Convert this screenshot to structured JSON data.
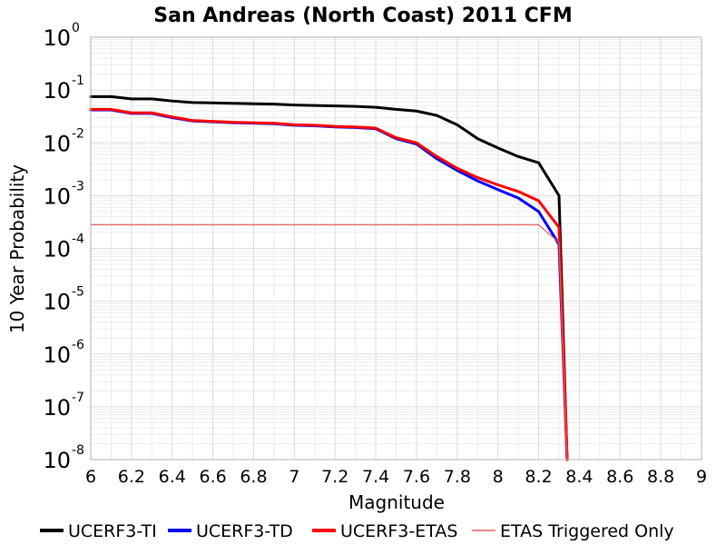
{
  "chart_data": {
    "type": "line",
    "title": "San Andreas (North Coast) 2011 CFM",
    "xlabel": "Magnitude",
    "ylabel": "10 Year Probability",
    "xlim": [
      6,
      9
    ],
    "ylim": [
      1e-08,
      1
    ],
    "yscale": "log",
    "grid": true,
    "legend_position": "bottom",
    "x_ticks": [
      "6",
      "6.2",
      "6.4",
      "6.6",
      "6.8",
      "7",
      "7.2",
      "7.4",
      "7.6",
      "7.8",
      "8",
      "8.2",
      "8.4",
      "8.6",
      "8.8",
      "9"
    ],
    "y_ticks": [
      {
        "base": "10",
        "exp": "0"
      },
      {
        "base": "10",
        "exp": "-1"
      },
      {
        "base": "10",
        "exp": "-2"
      },
      {
        "base": "10",
        "exp": "-3"
      },
      {
        "base": "10",
        "exp": "-4"
      },
      {
        "base": "10",
        "exp": "-5"
      },
      {
        "base": "10",
        "exp": "-6"
      },
      {
        "base": "10",
        "exp": "-7"
      },
      {
        "base": "10",
        "exp": "-8"
      }
    ],
    "series": [
      {
        "name": "UCERF3-TI",
        "color": "#000000",
        "points": [
          [
            6.0,
            0.075
          ],
          [
            6.1,
            0.075
          ],
          [
            6.2,
            0.068
          ],
          [
            6.3,
            0.068
          ],
          [
            6.4,
            0.062
          ],
          [
            6.5,
            0.058
          ],
          [
            6.6,
            0.057
          ],
          [
            6.7,
            0.056
          ],
          [
            6.8,
            0.055
          ],
          [
            6.9,
            0.054
          ],
          [
            7.0,
            0.052
          ],
          [
            7.1,
            0.051
          ],
          [
            7.2,
            0.05
          ],
          [
            7.3,
            0.049
          ],
          [
            7.4,
            0.047
          ],
          [
            7.5,
            0.043
          ],
          [
            7.6,
            0.04
          ],
          [
            7.7,
            0.033
          ],
          [
            7.8,
            0.022
          ],
          [
            7.9,
            0.012
          ],
          [
            8.0,
            0.008
          ],
          [
            8.1,
            0.0055
          ],
          [
            8.2,
            0.0042
          ],
          [
            8.3,
            0.001
          ],
          [
            8.34,
            1e-08
          ]
        ]
      },
      {
        "name": "UCERF3-TD",
        "color": "#0000ff",
        "points": [
          [
            6.0,
            0.042
          ],
          [
            6.1,
            0.042
          ],
          [
            6.2,
            0.036
          ],
          [
            6.3,
            0.036
          ],
          [
            6.4,
            0.03
          ],
          [
            6.5,
            0.026
          ],
          [
            6.6,
            0.025
          ],
          [
            6.7,
            0.024
          ],
          [
            6.8,
            0.0235
          ],
          [
            6.9,
            0.023
          ],
          [
            7.0,
            0.0215
          ],
          [
            7.1,
            0.021
          ],
          [
            7.2,
            0.02
          ],
          [
            7.3,
            0.0195
          ],
          [
            7.4,
            0.0185
          ],
          [
            7.5,
            0.012
          ],
          [
            7.6,
            0.0095
          ],
          [
            7.7,
            0.005
          ],
          [
            7.8,
            0.003
          ],
          [
            7.9,
            0.0019
          ],
          [
            8.0,
            0.0013
          ],
          [
            8.1,
            0.0009
          ],
          [
            8.2,
            0.0005
          ],
          [
            8.3,
            0.00012
          ],
          [
            8.34,
            1e-08
          ]
        ]
      },
      {
        "name": "UCERF3-ETAS",
        "color": "#ff0000",
        "points": [
          [
            6.0,
            0.043
          ],
          [
            6.1,
            0.043
          ],
          [
            6.2,
            0.037
          ],
          [
            6.3,
            0.037
          ],
          [
            6.4,
            0.031
          ],
          [
            6.5,
            0.0265
          ],
          [
            6.6,
            0.0255
          ],
          [
            6.7,
            0.0245
          ],
          [
            6.8,
            0.024
          ],
          [
            6.9,
            0.0235
          ],
          [
            7.0,
            0.022
          ],
          [
            7.1,
            0.0215
          ],
          [
            7.2,
            0.0205
          ],
          [
            7.3,
            0.02
          ],
          [
            7.4,
            0.019
          ],
          [
            7.5,
            0.0125
          ],
          [
            7.6,
            0.01
          ],
          [
            7.7,
            0.0055
          ],
          [
            7.8,
            0.0033
          ],
          [
            7.9,
            0.0022
          ],
          [
            8.0,
            0.0016
          ],
          [
            8.1,
            0.0012
          ],
          [
            8.2,
            0.0008
          ],
          [
            8.3,
            0.00025
          ],
          [
            8.34,
            1e-08
          ]
        ]
      },
      {
        "name": "ETAS Triggered Only",
        "color": "#e06060",
        "points": [
          [
            6.0,
            0.00028
          ],
          [
            8.2,
            0.00028
          ],
          [
            8.3,
            0.00013
          ],
          [
            8.34,
            1e-08
          ]
        ]
      }
    ]
  }
}
